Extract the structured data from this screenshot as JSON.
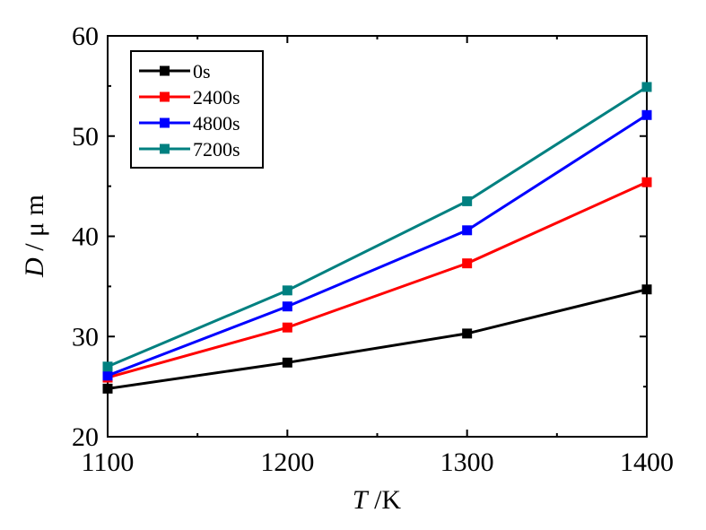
{
  "chart_data": {
    "type": "line",
    "x": [
      1100,
      1200,
      1300,
      1400
    ],
    "xlabel_italic": "T",
    "xlabel_unit": " /K",
    "ylabel_italic": "D",
    "ylabel_unit": " / μ m",
    "xlim": [
      1100,
      1400
    ],
    "ylim": [
      20,
      60
    ],
    "xticks": [
      1100,
      1200,
      1300,
      1400
    ],
    "yticks": [
      20,
      30,
      40,
      50,
      60
    ],
    "grid": false,
    "legend_position": "top-left",
    "series": [
      {
        "name": "0s",
        "color": "#000000",
        "values": [
          24.8,
          27.4,
          30.3,
          34.7
        ]
      },
      {
        "name": "2400s",
        "color": "#ff0000",
        "values": [
          25.9,
          30.9,
          37.3,
          45.4
        ]
      },
      {
        "name": "4800s",
        "color": "#0000ff",
        "values": [
          26.1,
          33.0,
          40.6,
          52.1
        ]
      },
      {
        "name": "7200s",
        "color": "#008080",
        "values": [
          27.0,
          34.6,
          43.5,
          54.9
        ]
      }
    ]
  }
}
